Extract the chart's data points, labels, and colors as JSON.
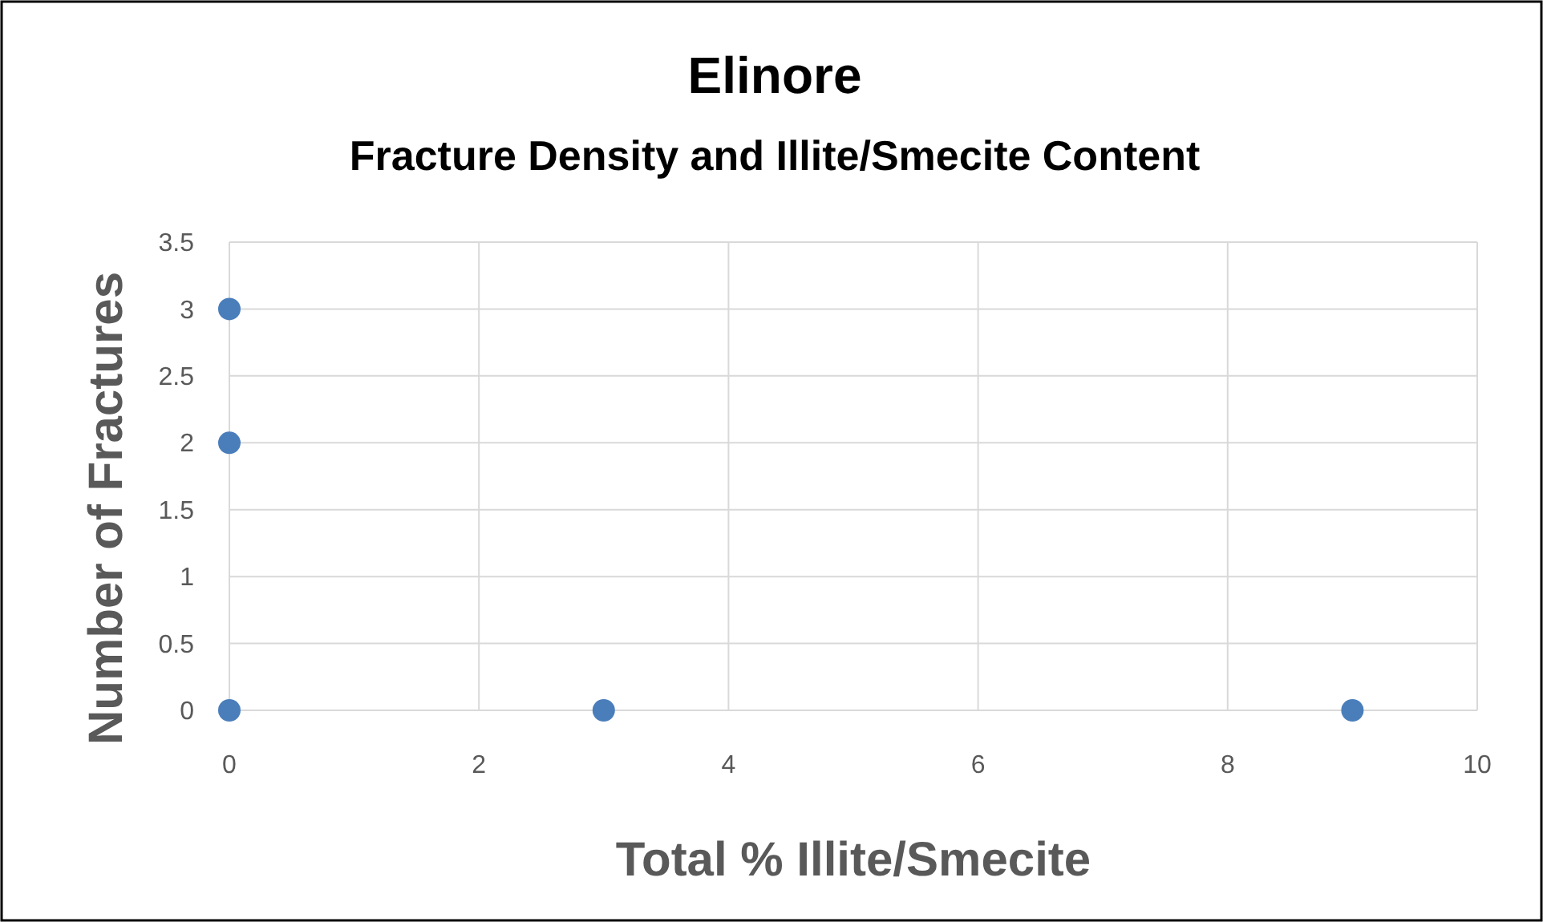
{
  "chart_data": {
    "type": "scatter",
    "title": "Elinore",
    "subtitle": "Fracture Density and Illite/Smecite Content",
    "xlabel": "Total % Illite/Smecite",
    "ylabel": "Number of Fractures",
    "x": [
      0,
      0,
      0,
      3,
      9
    ],
    "series": [
      {
        "color": "#4a7ebb",
        "values": [
          3,
          2,
          0,
          0,
          0
        ]
      }
    ],
    "xlim": [
      0,
      10
    ],
    "xticks": [
      0,
      2,
      4,
      6,
      8,
      10
    ],
    "ylim": [
      0,
      3.5
    ],
    "yticks": [
      0,
      0.5,
      1,
      1.5,
      2,
      2.5,
      3,
      3.5
    ],
    "grid": true,
    "marker": "circle"
  }
}
